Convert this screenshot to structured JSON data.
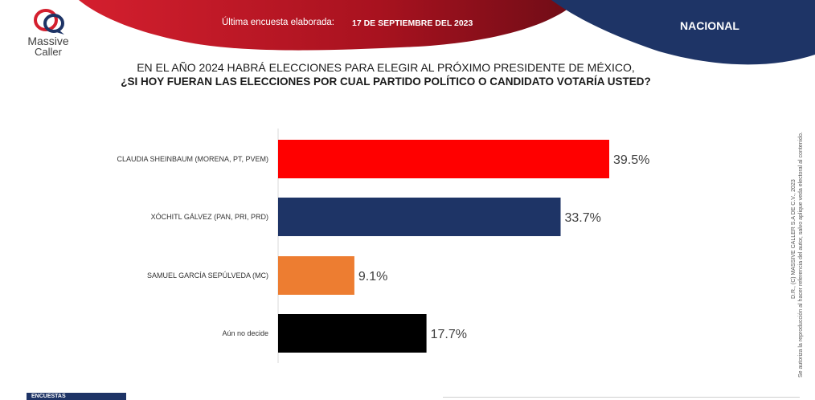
{
  "brand": {
    "name_line1": "Massive",
    "name_line2": "Caller"
  },
  "header": {
    "survey_label": "Última encuesta elaborada:",
    "survey_date": "17 DE SEPTIEMBRE DEL 2023",
    "scope": "NACIONAL"
  },
  "question": {
    "line1": "EN EL AÑO 2024 HABRÁ ELECCIONES PARA ELEGIR AL PRÓXIMO PRESIDENTE DE MÉXICO,",
    "line2": "¿SI HOY FUERAN LAS ELECCIONES POR CUAL PARTIDO POLÍTICO O CANDIDATO VOTARÍA USTED?"
  },
  "side_note": {
    "line1": "D.R., (C) MASSIVE CALLER S.A DE C.V., 2023",
    "line2": "Se autoriza la reproducción al hacer referencia del autor, salvo aplique veda electoral al contenido."
  },
  "footer": {
    "badge": "ENCUESTAS"
  },
  "colors": {
    "banner_red": "#b01825",
    "banner_navy": "#1e3466"
  },
  "chart_data": {
    "type": "bar",
    "orientation": "horizontal",
    "categories": [
      "CLAUDIA SHEINBAUM (MORENA, PT, PVEM)",
      "XÓCHITL GÁLVEZ (PAN, PRI, PRD)",
      "SAMUEL GARCÍA SEPÚLVEDA (MC)",
      "Aún no decide"
    ],
    "values": [
      39.5,
      33.7,
      9.1,
      17.7
    ],
    "value_labels": [
      "39.5%",
      "33.7%",
      "9.1%",
      "17.7%"
    ],
    "colors": [
      "#ff0000",
      "#1e3466",
      "#ed7d31",
      "#000000"
    ],
    "xlim": [
      0,
      44
    ],
    "grid": false
  }
}
